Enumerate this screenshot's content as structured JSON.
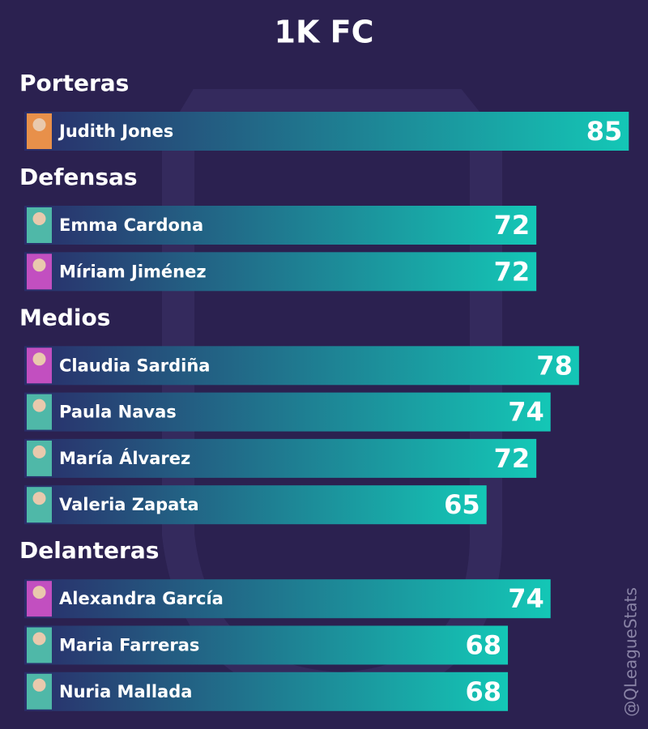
{
  "chart_data": {
    "type": "bar",
    "title": "1K FC",
    "groups": [
      {
        "name": "Porteras",
        "categories": [
          "Judith Jones"
        ],
        "values": [
          85
        ]
      },
      {
        "name": "Defensas",
        "categories": [
          "Emma Cardona",
          "Míriam Jiménez"
        ],
        "values": [
          72,
          72
        ]
      },
      {
        "name": "Medios",
        "categories": [
          "Claudia Sardiña",
          "Paula Navas",
          "María Álvarez",
          "Valeria Zapata"
        ],
        "values": [
          78,
          74,
          72,
          65
        ]
      },
      {
        "name": "Delanteras",
        "categories": [
          "Alexandra García",
          "Maria Farreras",
          "Nuria Mallada"
        ],
        "values": [
          74,
          68,
          68
        ]
      }
    ],
    "watermark": "@QLeagueStats"
  }
}
